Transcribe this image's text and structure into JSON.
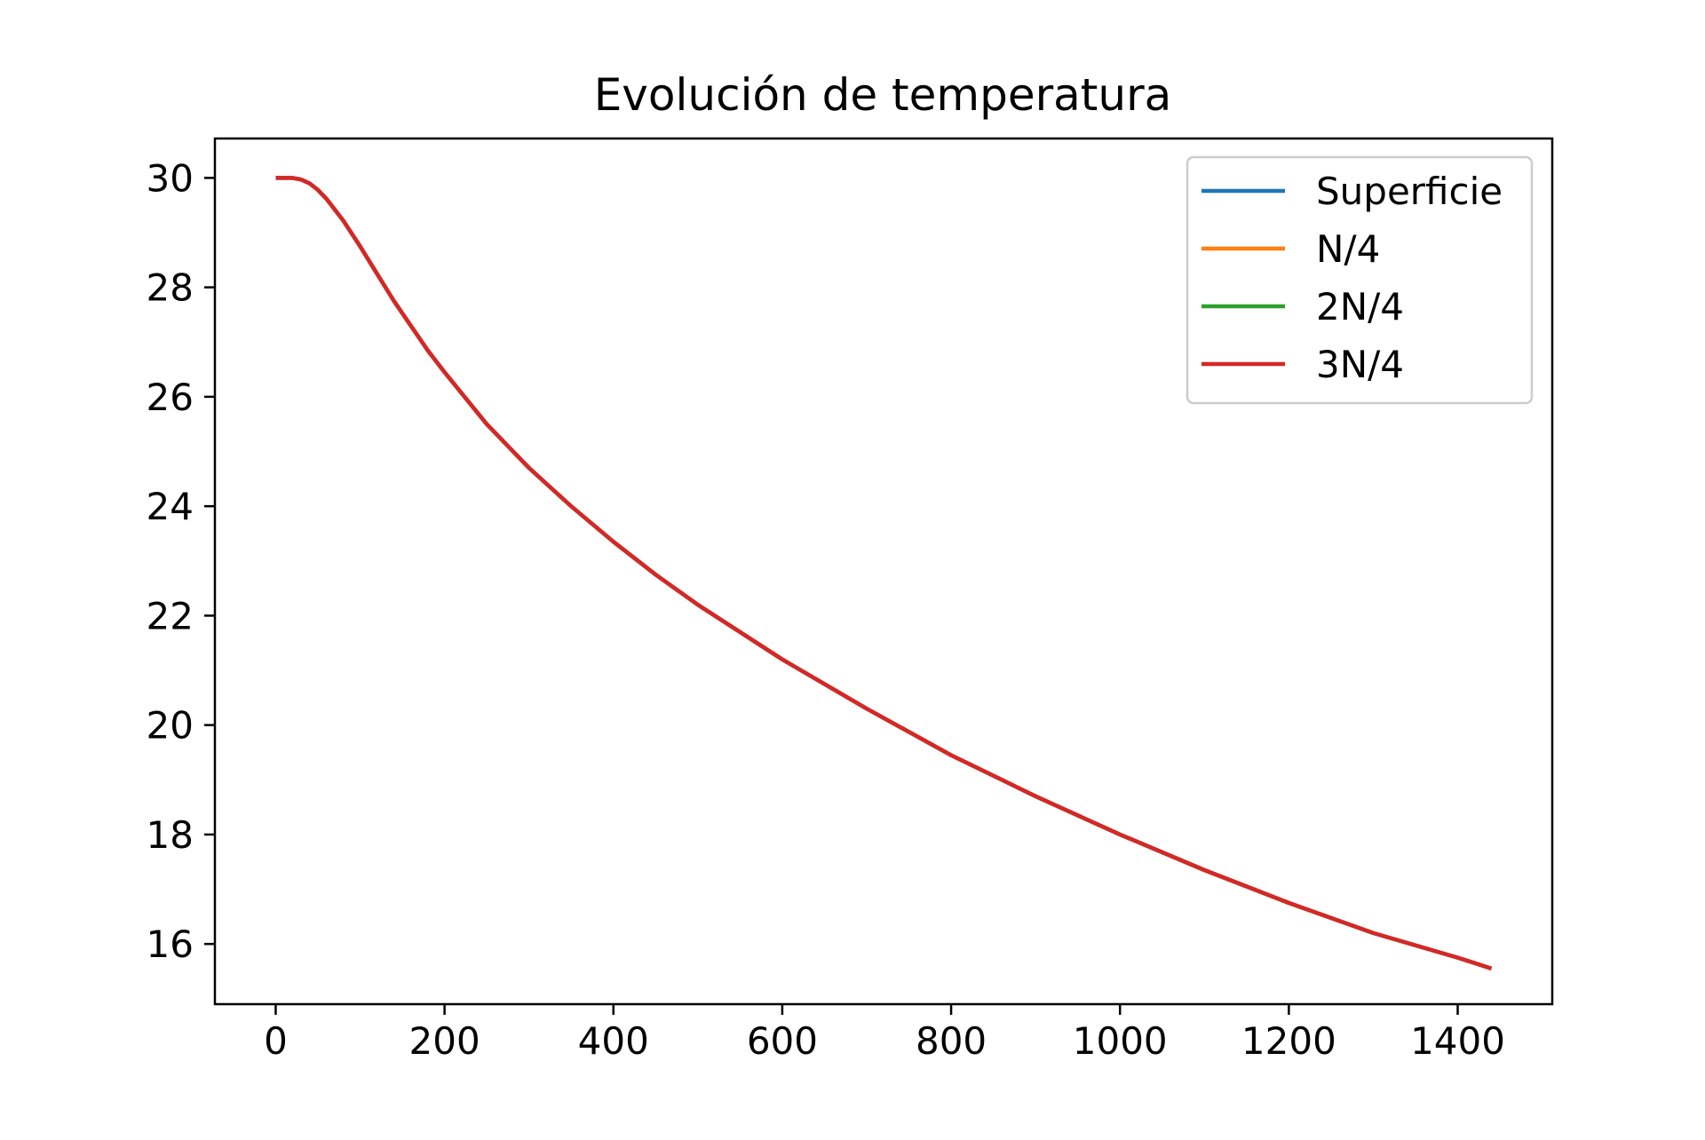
{
  "chart_data": {
    "type": "line",
    "title": "Evolución de temperatura",
    "xlabel": "",
    "ylabel": "",
    "xlim": [
      -72,
      1512
    ],
    "ylim": [
      14.9,
      30.72
    ],
    "xticks": [
      0,
      200,
      400,
      600,
      800,
      1000,
      1200,
      1400
    ],
    "yticks": [
      16,
      18,
      20,
      22,
      24,
      26,
      28,
      30
    ],
    "grid": false,
    "legend_position": "top-right",
    "x": [
      0,
      10,
      20,
      30,
      40,
      50,
      60,
      80,
      100,
      120,
      140,
      160,
      180,
      200,
      250,
      300,
      350,
      400,
      450,
      500,
      600,
      700,
      800,
      900,
      1000,
      1100,
      1200,
      1300,
      1400,
      1440
    ],
    "series": [
      {
        "name": "Superficie",
        "color": "#1f77b4",
        "values": [
          30.0,
          30.0,
          30.0,
          29.97,
          29.9,
          29.78,
          29.62,
          29.22,
          28.75,
          28.25,
          27.75,
          27.3,
          26.85,
          26.45,
          25.5,
          24.7,
          24.0,
          23.35,
          22.75,
          22.2,
          21.2,
          20.3,
          19.45,
          18.7,
          18.0,
          17.35,
          16.75,
          16.2,
          15.75,
          15.55
        ]
      },
      {
        "name": "N/4",
        "color": "#ff7f0e",
        "values": [
          30.0,
          30.0,
          30.0,
          29.97,
          29.9,
          29.78,
          29.62,
          29.22,
          28.75,
          28.25,
          27.75,
          27.3,
          26.85,
          26.45,
          25.5,
          24.7,
          24.0,
          23.35,
          22.75,
          22.2,
          21.2,
          20.3,
          19.45,
          18.7,
          18.0,
          17.35,
          16.75,
          16.2,
          15.75,
          15.55
        ]
      },
      {
        "name": "2N/4",
        "color": "#2ca02c",
        "values": [
          30.0,
          30.0,
          30.0,
          29.97,
          29.9,
          29.78,
          29.62,
          29.22,
          28.75,
          28.25,
          27.75,
          27.3,
          26.85,
          26.45,
          25.5,
          24.7,
          24.0,
          23.35,
          22.75,
          22.2,
          21.2,
          20.3,
          19.45,
          18.7,
          18.0,
          17.35,
          16.75,
          16.2,
          15.75,
          15.55
        ]
      },
      {
        "name": "3N/4",
        "color": "#d62728",
        "values": [
          30.0,
          30.0,
          30.0,
          29.97,
          29.9,
          29.78,
          29.62,
          29.22,
          28.75,
          28.25,
          27.75,
          27.3,
          26.85,
          26.45,
          25.5,
          24.7,
          24.0,
          23.35,
          22.75,
          22.2,
          21.2,
          20.3,
          19.45,
          18.7,
          18.0,
          17.35,
          16.75,
          16.2,
          15.75,
          15.55
        ]
      }
    ]
  }
}
